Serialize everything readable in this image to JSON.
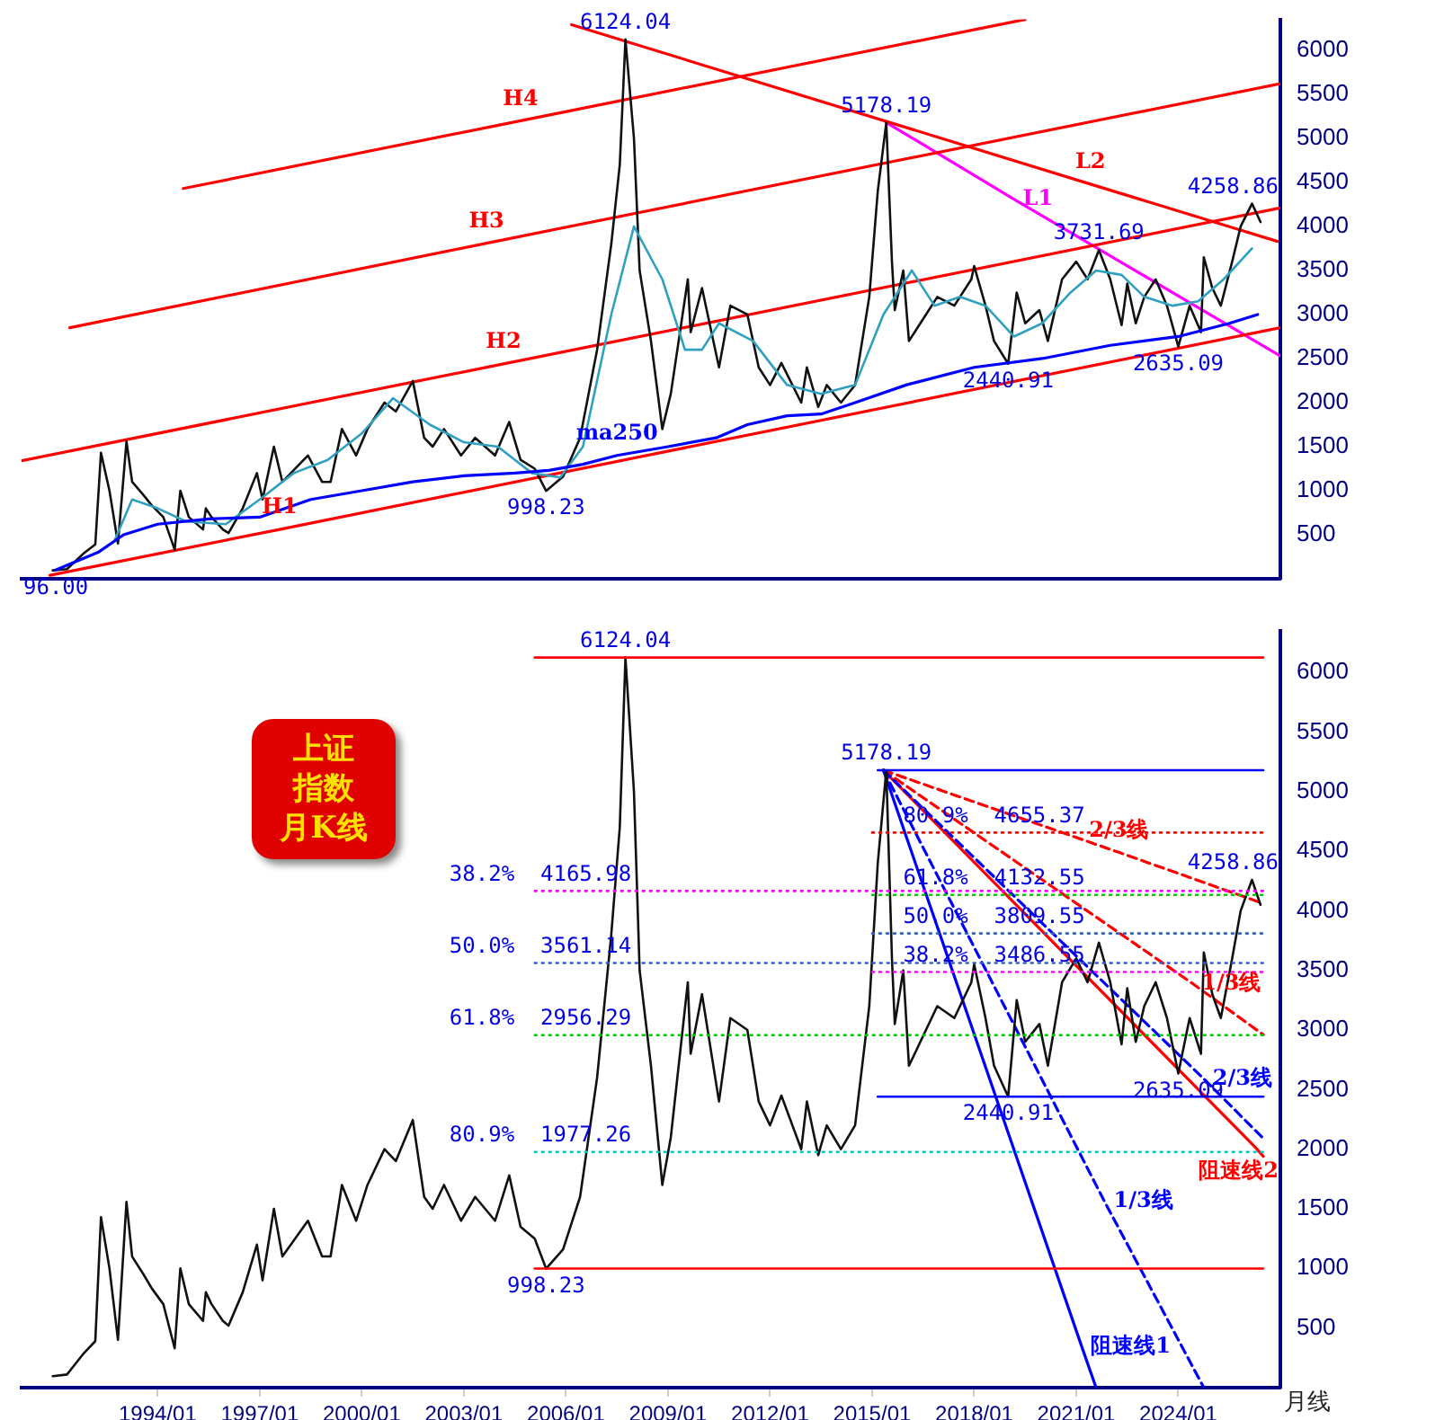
{
  "chart_data": [
    {
      "type": "line",
      "xlim": [
        "1990-01",
        "2027-01"
      ],
      "ylim": [
        0,
        6350
      ],
      "yticks": [
        500,
        1000,
        1500,
        2000,
        2500,
        3000,
        3500,
        4000,
        4500,
        5000,
        5500,
        6000
      ],
      "tick_labels": "y",
      "grid": false,
      "legend": false,
      "marker": "none",
      "series": [
        {
          "color": "#0000ff",
          "name": "ma250",
          "x": [
            "1991-01",
            "1992-04",
            "1993-01",
            "1994-01",
            "1995-07",
            "1997-01",
            "1998-07",
            "2000-01",
            "2001-07",
            "2003-01",
            "2004-07",
            "2005-07",
            "2006-07",
            "2007-07",
            "2009-01",
            "2010-06",
            "2011-05",
            "2012-07",
            "2013-07",
            "2014-07",
            "2016-01",
            "2018-01",
            "2020-01",
            "2022-01",
            "2024-01",
            "2025-07",
            "2026-05"
          ],
          "values": [
            100,
            300,
            500,
            620,
            680,
            700,
            900,
            1000,
            1100,
            1170,
            1200,
            1230,
            1300,
            1400,
            1500,
            1600,
            1750,
            1850,
            1870,
            2000,
            2200,
            2400,
            2500,
            2650,
            2750,
            2900,
            3000
          ]
        },
        {
          "color": "#30a0c0",
          "x": [
            "1992-10",
            "1993-04",
            "1994-01",
            "1994-11",
            "1996-01",
            "1997-01",
            "1998-01",
            "1999-01",
            "2000-01",
            "2000-12",
            "2002-01",
            "2003-01",
            "2004-01",
            "2005-01",
            "2005-11",
            "2006-07",
            "2007-05",
            "2008-01",
            "2008-11",
            "2009-07",
            "2010-01",
            "2010-07",
            "2011-07",
            "2012-07",
            "2013-07",
            "2014-07",
            "2015-05",
            "2016-03",
            "2016-11",
            "2017-08",
            "2018-05",
            "2019-03",
            "2020-01",
            "2020-11",
            "2021-08",
            "2022-05",
            "2023-01",
            "2023-11",
            "2024-08",
            "2025-05",
            "2026-03"
          ],
          "values": [
            450,
            900,
            800,
            650,
            620,
            900,
            1200,
            1350,
            1650,
            2050,
            1750,
            1550,
            1500,
            1200,
            1150,
            1500,
            3000,
            4000,
            3400,
            2600,
            2600,
            2900,
            2700,
            2200,
            2100,
            2200,
            3000,
            3500,
            3100,
            3200,
            3100,
            2750,
            2900,
            3250,
            3500,
            3450,
            3200,
            3100,
            3150,
            3400,
            3750
          ]
        },
        {
          "color": "#111111",
          "x": [
            "1990-12",
            "1991-05",
            "1991-11",
            "1992-03",
            "1992-05",
            "1992-08",
            "1992-11",
            "1993-02",
            "1993-04",
            "1993-08",
            "1993-11",
            "1994-03",
            "1994-07",
            "1994-09",
            "1994-12",
            "1995-05",
            "1995-06",
            "1995-08",
            "1995-12",
            "1996-02",
            "1996-07",
            "1996-12",
            "1997-02",
            "1997-06",
            "1997-09",
            "1997-12",
            "1998-06",
            "1998-11",
            "1999-02",
            "1999-06",
            "1999-11",
            "2000-03",
            "2000-09",
            "2001-01",
            "2001-07",
            "2001-11",
            "2002-02",
            "2002-06",
            "2002-12",
            "2003-05",
            "2003-12",
            "2004-05",
            "2004-09",
            "2005-02",
            "2005-06",
            "2005-12",
            "2006-06",
            "2006-12",
            "2007-05",
            "2007-08",
            "2007-10",
            "2008-01",
            "2008-03",
            "2008-07",
            "2008-11",
            "2009-02",
            "2009-08",
            "2009-09",
            "2010-01",
            "2010-07",
            "2010-11",
            "2011-05",
            "2011-09",
            "2012-01",
            "2012-05",
            "2012-12",
            "2013-02",
            "2013-06",
            "2013-09",
            "2014-02",
            "2014-07",
            "2014-12",
            "2015-03",
            "2015-06",
            "2015-08",
            "2015-09",
            "2015-12",
            "2016-02",
            "2016-08",
            "2016-12",
            "2017-06",
            "2017-12",
            "2018-01",
            "2018-05",
            "2018-08",
            "2019-01",
            "2019-04",
            "2019-07",
            "2019-12",
            "2020-03",
            "2020-08",
            "2021-01",
            "2021-05",
            "2021-09",
            "2022-01",
            "2022-05",
            "2022-07",
            "2022-10",
            "2023-01",
            "2023-05",
            "2023-09",
            "2024-01",
            "2024-05",
            "2024-09",
            "2024-10",
            "2025-01",
            "2025-04",
            "2025-08",
            "2025-11",
            "2026-03",
            "2026-06"
          ],
          "values": [
            96,
            110,
            290,
            390,
            1430,
            1000,
            400,
            1558,
            1100,
            950,
            830,
            700,
            330,
            1000,
            700,
            560,
            800,
            700,
            560,
            520,
            800,
            1200,
            900,
            1500,
            1100,
            1200,
            1400,
            1100,
            1100,
            1700,
            1400,
            1700,
            2000,
            1900,
            2245,
            1600,
            1500,
            1700,
            1400,
            1600,
            1400,
            1780,
            1350,
            1250,
            998.23,
            1160,
            1600,
            2600,
            3800,
            4700,
            6124.04,
            5000,
            3500,
            2700,
            1700,
            2100,
            3400,
            2800,
            3300,
            2400,
            3100,
            3000,
            2400,
            2200,
            2450,
            2000,
            2400,
            1950,
            2200,
            2000,
            2200,
            3200,
            4400,
            5178.19,
            3600,
            3050,
            3500,
            2700,
            3000,
            3200,
            3100,
            3400,
            3550,
            3100,
            2700,
            2440.91,
            3250,
            2900,
            3050,
            2700,
            3400,
            3600,
            3400,
            3731.69,
            3400,
            2880,
            3350,
            2900,
            3200,
            3400,
            3100,
            2635.09,
            3100,
            2800,
            3650,
            3300,
            3100,
            3600,
            4000,
            4258.86,
            4050
          ]
        },
        {
          "color": "#ff0000",
          "name": "H1",
          "x": [
            "1990-11",
            "1997-08",
            "2027-01"
          ],
          "values": [
            40,
            560,
            2850
          ]
        },
        {
          "color": "#ff0000",
          "name": "H2",
          "x": [
            "1990-01",
            "2004-03",
            "2027-01"
          ],
          "values": [
            1340,
            2440,
            4210
          ]
        },
        {
          "color": "#ff0000",
          "name": "H3",
          "x": [
            "1991-06",
            "2003-09",
            "2027-01"
          ],
          "values": [
            2850,
            3810,
            5620
          ]
        },
        {
          "color": "#ff0000",
          "name": "H4",
          "x": [
            "1994-10",
            "2004-09",
            "2019-07"
          ],
          "values": [
            4430,
            5200,
            6350
          ]
        },
        {
          "color": "#ff0000",
          "name": "L2",
          "x": [
            "2006-03",
            "2021-06",
            "2026-12"
          ],
          "values": [
            6290,
            4480,
            3830
          ]
        },
        {
          "color": "#ff00ff",
          "name": "L1",
          "x": [
            "2015-06",
            "2019-03",
            "2027-01"
          ],
          "values": [
            5180,
            4310,
            2530
          ]
        }
      ],
      "annotations": [
        {
          "text": "6124.04",
          "x": "2007-10",
          "y": 6124.04
        },
        {
          "text": "5178.19",
          "x": "2015-06",
          "y": 5178.19
        },
        {
          "text": "4258.86",
          "x": "2026-03",
          "y": 4258.86
        },
        {
          "text": "3731.69",
          "x": "2021-09",
          "y": 3731.69
        },
        {
          "text": "2635.09",
          "x": "2024-01",
          "y": 2635.09
        },
        {
          "text": "2440.91",
          "x": "2019-01",
          "y": 2440.91
        },
        {
          "text": "998.23",
          "x": "2005-06",
          "y": 998.23
        },
        {
          "text": "96.00",
          "x": "1990-12",
          "y": 96
        }
      ]
    },
    {
      "type": "line",
      "title": "上证指数月K线",
      "xlim": [
        "1990-01",
        "2027-01"
      ],
      "ylim": [
        0,
        6350
      ],
      "xticks": [
        {
          "value": "1994-01",
          "label": "1994/01"
        },
        {
          "value": "1997-01",
          "label": "1997/01"
        },
        {
          "value": "2000-01",
          "label": "2000/01"
        },
        {
          "value": "2003-01",
          "label": "2003/01"
        },
        {
          "value": "2006-01",
          "label": "2006/01"
        },
        {
          "value": "2009-01",
          "label": "2009/01"
        },
        {
          "value": "2012-01",
          "label": "2012/01"
        },
        {
          "value": "2015-01",
          "label": "2015/01"
        },
        {
          "value": "2018-01",
          "label": "2018/01"
        },
        {
          "value": "2021-01",
          "label": "2021/01"
        },
        {
          "value": "2024-01",
          "label": "2024/01"
        }
      ],
      "yticks": [
        500,
        1000,
        1500,
        2000,
        2500,
        3000,
        3500,
        4000,
        4500,
        5000,
        5500,
        6000
      ],
      "grid": false,
      "legend": false,
      "marker": "none",
      "series": [
        {
          "color": "#ff0000",
          "x": [
            "2005-02",
            "2026-07"
          ],
          "values": [
            6124.04,
            6124.04
          ]
        },
        {
          "color": "#ff0000",
          "x": [
            "2005-02",
            "2026-07"
          ],
          "values": [
            998.23,
            998.23
          ]
        },
        {
          "color": "#0000ff",
          "x": [
            "2015-03",
            "2026-07"
          ],
          "values": [
            5178.19,
            5178.19
          ]
        },
        {
          "color": "#0000ff",
          "x": [
            "2015-03",
            "2026-07"
          ],
          "values": [
            2440.91,
            2440.91
          ]
        },
        {
          "color": "#ff00ff",
          "line_style": "dotted",
          "x": [
            "2005-02",
            "2026-07"
          ],
          "values": [
            4165.98,
            4165.98
          ]
        },
        {
          "color": "#3060c0",
          "line_style": "dotted",
          "x": [
            "2005-02",
            "2026-07"
          ],
          "values": [
            3561.14,
            3561.14
          ]
        },
        {
          "color": "#00cc00",
          "line_style": "dotted",
          "x": [
            "2005-02",
            "2026-07"
          ],
          "values": [
            2956.29,
            2956.29
          ]
        },
        {
          "color": "#00cccc",
          "line_style": "dotted",
          "x": [
            "2005-02",
            "2026-07"
          ],
          "values": [
            1977.26,
            1977.26
          ]
        },
        {
          "color": "#ff0000",
          "line_style": "dotted",
          "x": [
            "2015-01",
            "2026-07"
          ],
          "values": [
            4655.37,
            4655.37
          ]
        },
        {
          "color": "#00cc00",
          "line_style": "dotted",
          "x": [
            "2015-01",
            "2026-07"
          ],
          "values": [
            4132.55,
            4132.55
          ]
        },
        {
          "color": "#3060c0",
          "line_style": "dotted",
          "x": [
            "2015-01",
            "2026-07"
          ],
          "values": [
            3809.55,
            3809.55
          ]
        },
        {
          "color": "#ff00ff",
          "line_style": "dotted",
          "x": [
            "2015-01",
            "2026-07"
          ],
          "values": [
            3486.55,
            3486.55
          ]
        },
        {
          "color": "#111111",
          "x": [
            "1990-12",
            "1991-05",
            "1991-11",
            "1992-03",
            "1992-05",
            "1992-08",
            "1992-11",
            "1993-02",
            "1993-04",
            "1993-08",
            "1993-11",
            "1994-03",
            "1994-07",
            "1994-09",
            "1994-12",
            "1995-05",
            "1995-06",
            "1995-08",
            "1995-12",
            "1996-02",
            "1996-07",
            "1996-12",
            "1997-02",
            "1997-06",
            "1997-09",
            "1997-12",
            "1998-06",
            "1998-11",
            "1999-02",
            "1999-06",
            "1999-11",
            "2000-03",
            "2000-09",
            "2001-01",
            "2001-07",
            "2001-11",
            "2002-02",
            "2002-06",
            "2002-12",
            "2003-05",
            "2003-12",
            "2004-05",
            "2004-09",
            "2005-02",
            "2005-06",
            "2005-12",
            "2006-06",
            "2006-12",
            "2007-05",
            "2007-08",
            "2007-10",
            "2008-01",
            "2008-03",
            "2008-07",
            "2008-11",
            "2009-02",
            "2009-08",
            "2009-09",
            "2010-01",
            "2010-07",
            "2010-11",
            "2011-05",
            "2011-09",
            "2012-01",
            "2012-05",
            "2012-12",
            "2013-02",
            "2013-06",
            "2013-09",
            "2014-02",
            "2014-07",
            "2014-12",
            "2015-03",
            "2015-06",
            "2015-08",
            "2015-09",
            "2015-12",
            "2016-02",
            "2016-08",
            "2016-12",
            "2017-06",
            "2017-12",
            "2018-01",
            "2018-05",
            "2018-08",
            "2019-01",
            "2019-04",
            "2019-07",
            "2019-12",
            "2020-03",
            "2020-08",
            "2021-01",
            "2021-05",
            "2021-09",
            "2022-01",
            "2022-05",
            "2022-07",
            "2022-10",
            "2023-01",
            "2023-05",
            "2023-09",
            "2024-01",
            "2024-05",
            "2024-09",
            "2024-10",
            "2025-01",
            "2025-04",
            "2025-08",
            "2025-11",
            "2026-03",
            "2026-06"
          ],
          "values": [
            96,
            110,
            290,
            390,
            1430,
            1000,
            400,
            1558,
            1100,
            950,
            830,
            700,
            330,
            1000,
            700,
            560,
            800,
            700,
            560,
            520,
            800,
            1200,
            900,
            1500,
            1100,
            1200,
            1400,
            1100,
            1100,
            1700,
            1400,
            1700,
            2000,
            1900,
            2245,
            1600,
            1500,
            1700,
            1400,
            1600,
            1400,
            1780,
            1350,
            1250,
            998.23,
            1160,
            1600,
            2600,
            3800,
            4700,
            6124.04,
            5000,
            3500,
            2700,
            1700,
            2100,
            3400,
            2800,
            3300,
            2400,
            3100,
            3000,
            2400,
            2200,
            2450,
            2000,
            2400,
            1950,
            2200,
            2000,
            2200,
            3200,
            4400,
            5178.19,
            3600,
            3050,
            3500,
            2700,
            3000,
            3200,
            3100,
            3400,
            3550,
            3100,
            2700,
            2440.91,
            3250,
            2900,
            3050,
            2700,
            3400,
            3600,
            3400,
            3731.69,
            3400,
            2880,
            3350,
            2900,
            3200,
            3400,
            3100,
            2635.09,
            3100,
            2800,
            3650,
            3300,
            3100,
            3600,
            4000,
            4258.86,
            4050
          ]
        },
        {
          "color": "#0000ff",
          "name": "阻速线1",
          "x": [
            "2015-05",
            "2021-03",
            "2021-08"
          ],
          "values": [
            5178.19,
            340,
            0
          ]
        },
        {
          "color": "#0000ff",
          "name": "1/3线",
          "line_style": "dashed",
          "x": [
            "2015-05",
            "2021-11",
            "2024-10"
          ],
          "values": [
            5178.19,
            1560,
            0
          ]
        },
        {
          "color": "#0000ff",
          "name": "2/3线",
          "line_style": "dashed",
          "x": [
            "2015-05",
            "2024-10",
            "2026-07"
          ],
          "values": [
            5178.19,
            2590,
            2090
          ]
        },
        {
          "color": "#ff0000",
          "name": "阻速线2",
          "x": [
            "2015-05",
            "2026-04",
            "2026-07"
          ],
          "values": [
            5178.19,
            2020,
            1940
          ]
        },
        {
          "color": "#ff0000",
          "name": "2/3线",
          "line_style": "dashed",
          "x": [
            "2015-05",
            "2022-04",
            "2026-07"
          ],
          "values": [
            5178.19,
            4490,
            4060
          ]
        },
        {
          "color": "#ff0000",
          "name": "1/3线",
          "line_style": "dashed",
          "x": [
            "2015-05",
            "2024-06",
            "2026-07"
          ],
          "values": [
            5178.19,
            3390,
            2960
          ]
        }
      ],
      "annotations": [
        {
          "text": "6124.04",
          "x": "2007-10",
          "y": 6124.04
        },
        {
          "text": "998.23",
          "x": "2005-06",
          "y": 998.23
        },
        {
          "text": "5178.19",
          "x": "2015-06",
          "y": 5178.19
        },
        {
          "text": "2440.91",
          "x": "2019-01",
          "y": 2440.91
        },
        {
          "text": "2635.09",
          "x": "2024-01",
          "y": 2635.09
        },
        {
          "text": "4258.86",
          "x": "2026-03",
          "y": 4258.86
        },
        {
          "text": "38.2%  4165.98",
          "x": "2005-04",
          "y": 4165.98
        },
        {
          "text": "50.0%  3561.14",
          "x": "2005-04",
          "y": 3561.14
        },
        {
          "text": "61.8%  2956.29",
          "x": "2005-04",
          "y": 2956.29
        },
        {
          "text": "80.9%  1977.26",
          "x": "2005-04",
          "y": 1977.26
        },
        {
          "text": "80.9%  4655.37",
          "x": "2018-08",
          "y": 4655.37
        },
        {
          "text": "61.8%  4132.55",
          "x": "2018-08",
          "y": 4132.55
        },
        {
          "text": "50.0%  3809.55",
          "x": "2018-08",
          "y": 3809.55
        },
        {
          "text": "38.2%  3486.55",
          "x": "2018-08",
          "y": 3486.55
        },
        "月线"
      ]
    }
  ]
}
